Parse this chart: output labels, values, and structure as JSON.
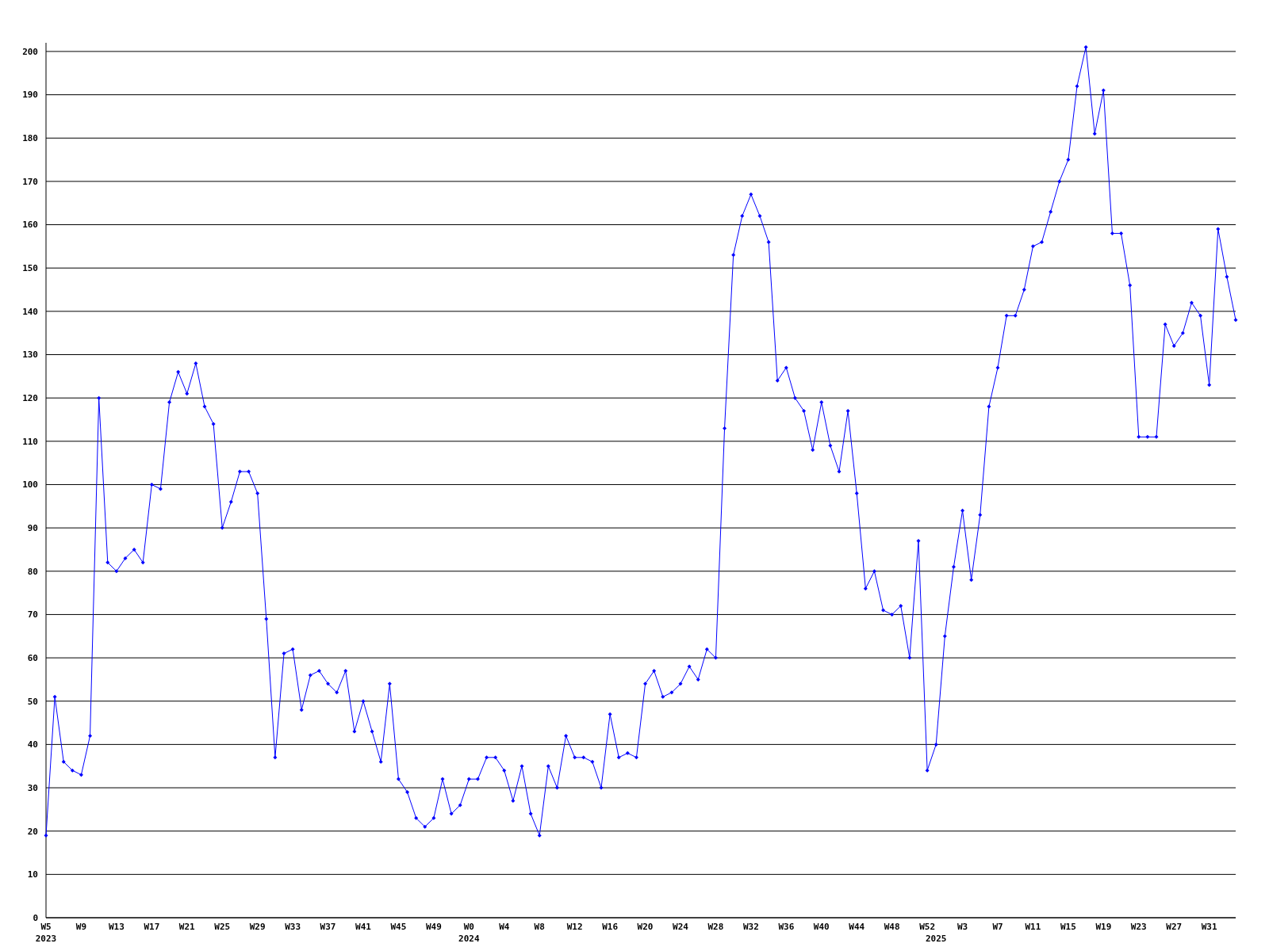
{
  "chart_data": {
    "type": "line",
    "categories": [
      "W5\n2023",
      null,
      null,
      null,
      "W9",
      null,
      null,
      null,
      "W13",
      null,
      null,
      null,
      "W17",
      null,
      null,
      null,
      "W21",
      null,
      null,
      null,
      "W25",
      null,
      null,
      null,
      "W29",
      null,
      null,
      null,
      "W33",
      null,
      null,
      null,
      "W37",
      null,
      null,
      null,
      "W41",
      null,
      null,
      null,
      "W45",
      null,
      null,
      null,
      "W49",
      null,
      null,
      null,
      "W0\n2024",
      null,
      null,
      null,
      "W4",
      null,
      null,
      null,
      "W8",
      null,
      null,
      null,
      "W12",
      null,
      null,
      null,
      "W16",
      null,
      null,
      null,
      "W20",
      null,
      null,
      null,
      "W24",
      null,
      null,
      null,
      "W28",
      null,
      null,
      null,
      "W32",
      null,
      null,
      null,
      "W36",
      null,
      null,
      null,
      "W40",
      null,
      null,
      null,
      "W44",
      null,
      null,
      null,
      "W48",
      null,
      null,
      null,
      "W52",
      "\n2025",
      null,
      null,
      "W3",
      null,
      null,
      null,
      "W7",
      null,
      null,
      null,
      "W11",
      null,
      null,
      null,
      "W15",
      null,
      null,
      null,
      "W19",
      null,
      null,
      null,
      "W23",
      null,
      null,
      null,
      "W27",
      null,
      null,
      null,
      "W31",
      null,
      null,
      null
    ],
    "series": [
      {
        "color": "#0000ff",
        "values": [
          19,
          51,
          36,
          34,
          33,
          42,
          120,
          82,
          80,
          83,
          85,
          82,
          100,
          99,
          119,
          126,
          121,
          128,
          118,
          114,
          90,
          96,
          103,
          103,
          98,
          69,
          37,
          61,
          62,
          48,
          56,
          57,
          54,
          52,
          57,
          43,
          50,
          43,
          36,
          54,
          32,
          29,
          23,
          21,
          23,
          32,
          24,
          26,
          32,
          32,
          37,
          37,
          34,
          27,
          35,
          24,
          19,
          35,
          30,
          42,
          37,
          37,
          36,
          30,
          47,
          37,
          38,
          37,
          54,
          57,
          51,
          52,
          54,
          58,
          55,
          62,
          60,
          113,
          153,
          162,
          167,
          162,
          156,
          124,
          127,
          120,
          117,
          108,
          119,
          109,
          103,
          117,
          98,
          76,
          80,
          71,
          70,
          72,
          60,
          87,
          34,
          40,
          65,
          81,
          94,
          78,
          93,
          118,
          127,
          139,
          139,
          145,
          155,
          156,
          163,
          170,
          175,
          192,
          201,
          181,
          191,
          158,
          158,
          146,
          111,
          111,
          111,
          137,
          132,
          135,
          142,
          139,
          123,
          159,
          148,
          138
        ]
      }
    ],
    "ylim": [
      0,
      202
    ],
    "yticks": [
      0,
      10,
      20,
      30,
      40,
      50,
      60,
      70,
      80,
      90,
      100,
      110,
      120,
      130,
      140,
      150,
      160,
      170,
      180,
      190,
      200
    ],
    "grid": "y",
    "marker": "diamond",
    "line_style": "solid"
  }
}
